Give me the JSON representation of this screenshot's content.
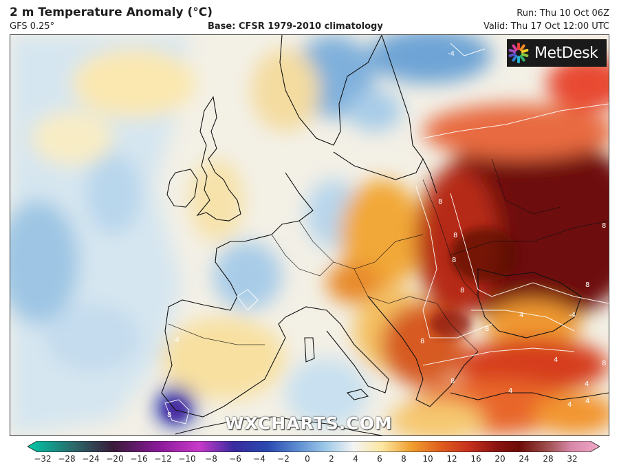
{
  "header": {
    "title": "2 m Temperature Anomaly (°C)",
    "model": "GFS 0.25°",
    "base": "Base: CFSR 1979-2010 climatology",
    "run": "Run: Thu 10 Oct 06Z",
    "valid": "Valid: Thu 17 Oct 12:00 UTC"
  },
  "logo": {
    "text": "MetDesk"
  },
  "watermark": "WXCHARTS.COM",
  "colorbar": {
    "ticks": [
      "−32",
      "−28",
      "−24",
      "−20",
      "−16",
      "−12",
      "−10",
      "−8",
      "−6",
      "−4",
      "−2",
      "0",
      "2",
      "4",
      "6",
      "8",
      "10",
      "12",
      "16",
      "20",
      "24",
      "28",
      "32"
    ],
    "colors": {
      "teal": "#00c8a8",
      "purple": "#8a1a9a",
      "blue": "#2a4ab0",
      "lightblue": "#9cc8e8",
      "white": "#f4f4f4",
      "yellow": "#fbe6a0",
      "orange": "#f0a030",
      "red": "#c8321e",
      "darkred": "#6e0c08",
      "pink": "#f0a8c8"
    }
  },
  "map": {
    "contour_labels": [
      "-4",
      "-4",
      "-4",
      "8",
      "8",
      "8",
      "8",
      "8",
      "8",
      "8",
      "4",
      "4",
      "4",
      "4",
      "4",
      "8",
      "8",
      "8",
      "8",
      "4"
    ]
  }
}
